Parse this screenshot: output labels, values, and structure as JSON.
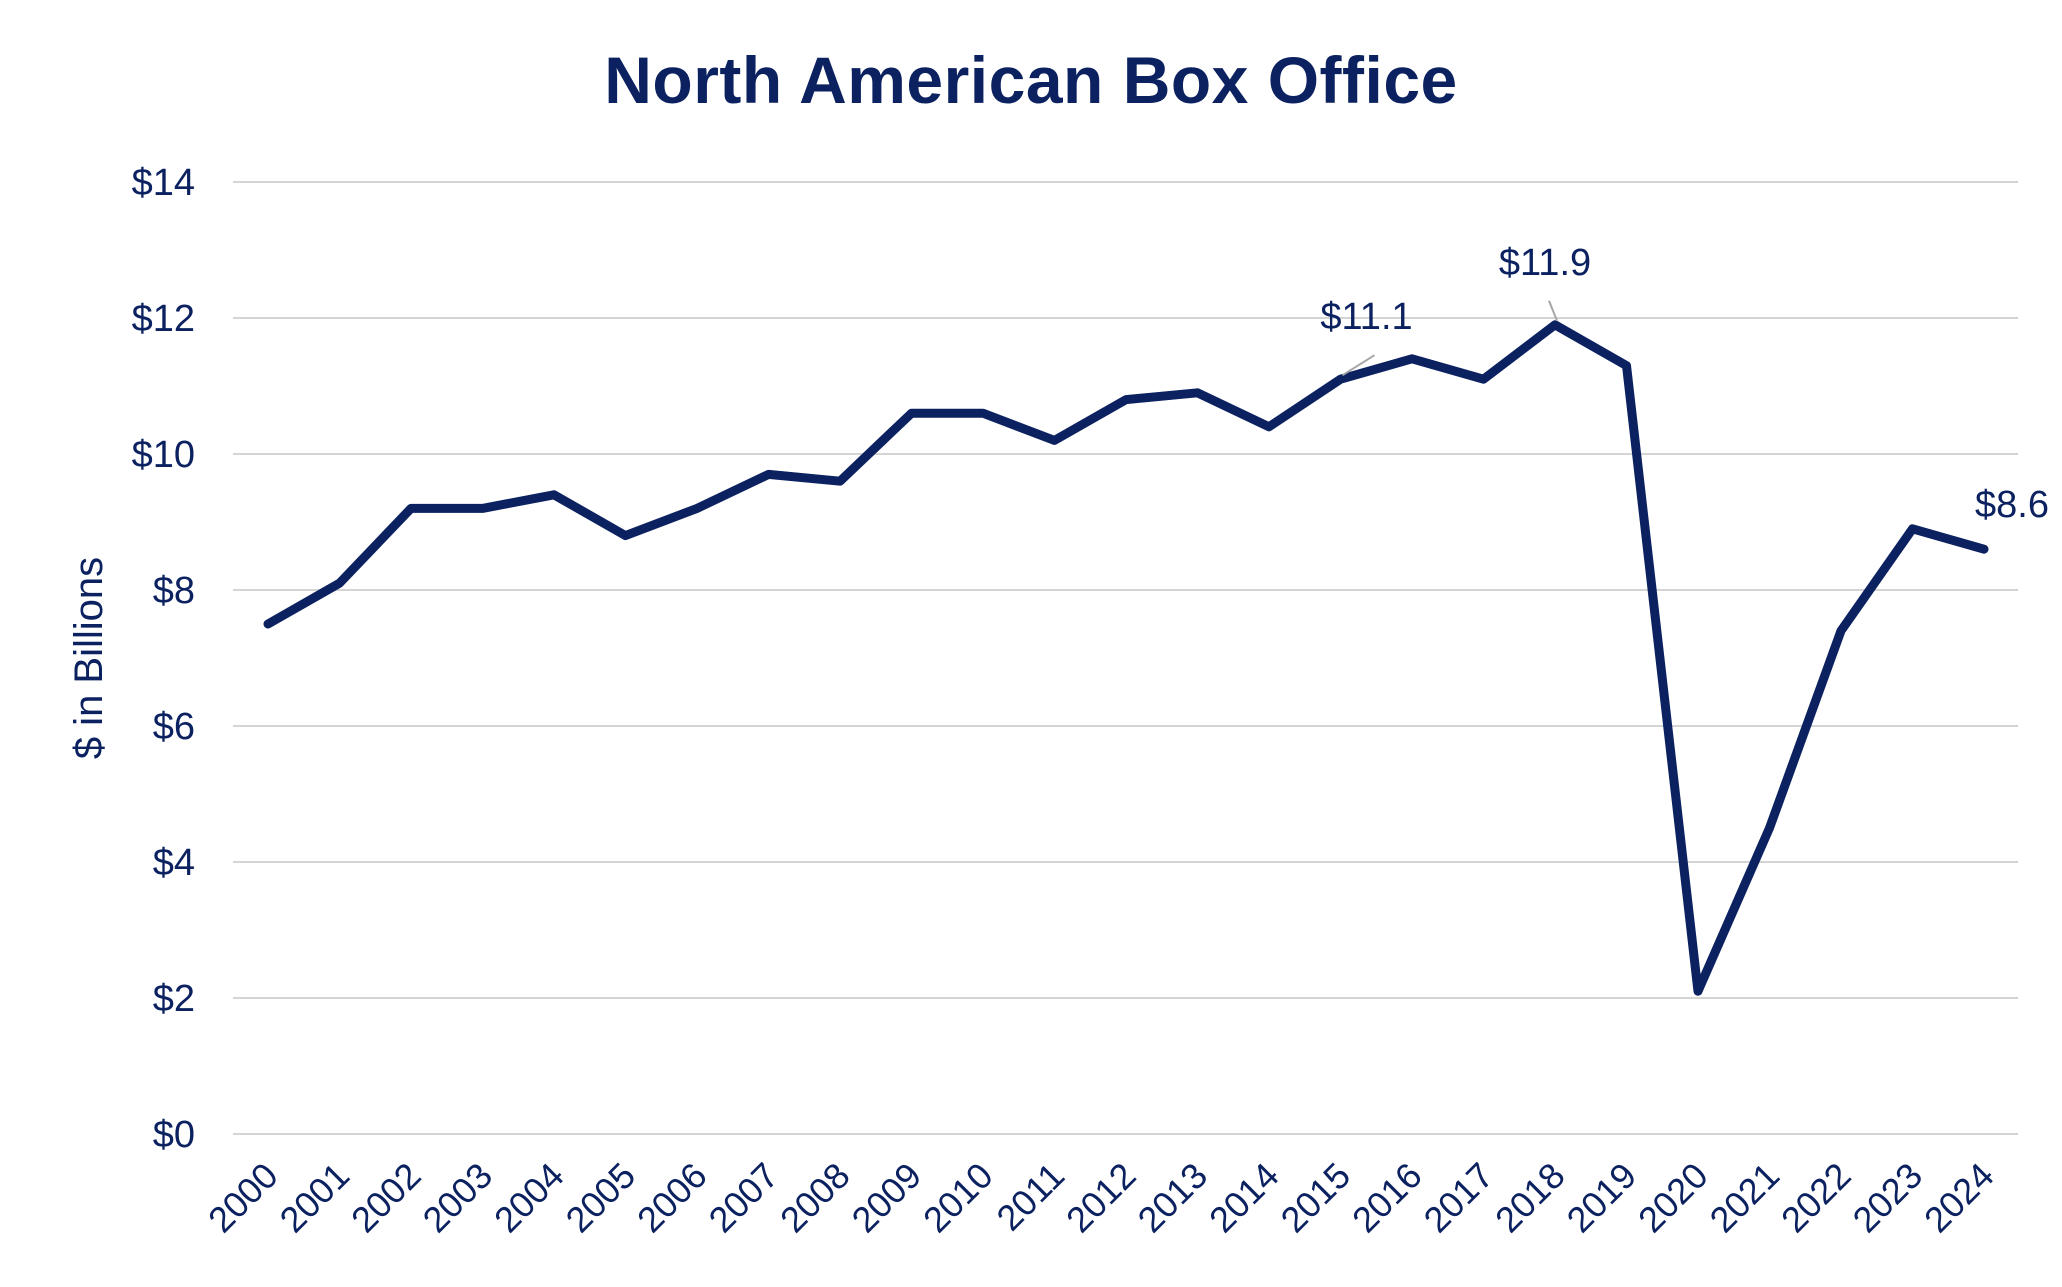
{
  "chart_data": {
    "type": "line",
    "title": "North American Box Office",
    "xlabel": "",
    "ylabel": "$ in Billions",
    "ylim": [
      0,
      14
    ],
    "y_ticks": [
      0,
      2,
      4,
      6,
      8,
      10,
      12,
      14
    ],
    "y_tick_labels": [
      "$0",
      "$2",
      "$4",
      "$6",
      "$8",
      "$10",
      "$12",
      "$14"
    ],
    "grid": true,
    "categories": [
      "2000",
      "2001",
      "2002",
      "2003",
      "2004",
      "2005",
      "2006",
      "2007",
      "2008",
      "2009",
      "2010",
      "2011",
      "2012",
      "2013",
      "2014",
      "2015",
      "2016",
      "2017",
      "2018",
      "2019",
      "2020",
      "2021",
      "2022",
      "2023",
      "2024"
    ],
    "series": [
      {
        "name": "North American Box Office",
        "color": "#0b2160",
        "values": [
          7.5,
          8.1,
          9.2,
          9.2,
          9.4,
          8.8,
          9.2,
          9.7,
          9.6,
          10.6,
          10.6,
          10.2,
          10.8,
          10.9,
          10.4,
          11.1,
          11.4,
          11.1,
          11.9,
          11.3,
          2.1,
          4.5,
          7.4,
          8.9,
          8.6
        ]
      }
    ],
    "annotations": [
      {
        "category": "2015",
        "value": 11.1,
        "text": "$11.1"
      },
      {
        "category": "2018",
        "value": 11.9,
        "text": "$11.9"
      },
      {
        "category": "2024",
        "value": 8.6,
        "text": "$8.6"
      }
    ]
  }
}
